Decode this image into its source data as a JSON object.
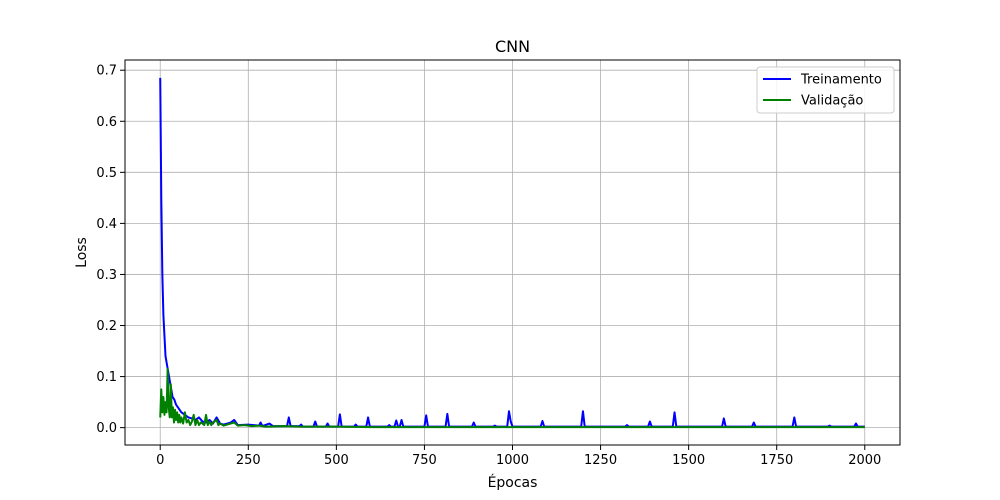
{
  "chart_data": {
    "type": "line",
    "title": "CNN",
    "xlabel": "Épocas",
    "ylabel": "Loss",
    "xlim": [
      -100,
      2100
    ],
    "ylim": [
      -0.034,
      0.72
    ],
    "x_ticks": [
      0,
      250,
      500,
      750,
      1000,
      1250,
      1500,
      1750,
      2000
    ],
    "y_ticks": [
      0.0,
      0.1,
      0.2,
      0.3,
      0.4,
      0.5,
      0.6,
      0.7
    ],
    "grid": true,
    "legend_position": "top-right",
    "series": [
      {
        "name": "Treinamento",
        "color": "#0000ff",
        "points": [
          [
            0,
            0.685
          ],
          [
            3,
            0.45
          ],
          [
            6,
            0.3
          ],
          [
            9,
            0.22
          ],
          [
            12,
            0.18
          ],
          [
            15,
            0.14
          ],
          [
            20,
            0.12
          ],
          [
            25,
            0.1
          ],
          [
            30,
            0.08
          ],
          [
            35,
            0.06
          ],
          [
            40,
            0.055
          ],
          [
            45,
            0.045
          ],
          [
            50,
            0.04
          ],
          [
            55,
            0.035
          ],
          [
            60,
            0.03
          ],
          [
            70,
            0.025
          ],
          [
            80,
            0.02
          ],
          [
            90,
            0.018
          ],
          [
            100,
            0.015
          ],
          [
            110,
            0.02
          ],
          [
            120,
            0.012
          ],
          [
            130,
            0.01
          ],
          [
            140,
            0.015
          ],
          [
            150,
            0.008
          ],
          [
            160,
            0.02
          ],
          [
            170,
            0.008
          ],
          [
            180,
            0.006
          ],
          [
            200,
            0.01
          ],
          [
            210,
            0.015
          ],
          [
            220,
            0.005
          ],
          [
            250,
            0.006
          ],
          [
            280,
            0.004
          ],
          [
            285,
            0.01
          ],
          [
            290,
            0.003
          ],
          [
            310,
            0.008
          ],
          [
            320,
            0.003
          ],
          [
            360,
            0.003
          ],
          [
            365,
            0.02
          ],
          [
            370,
            0.003
          ],
          [
            395,
            0.003
          ],
          [
            400,
            0.006
          ],
          [
            405,
            0.002
          ],
          [
            435,
            0.002
          ],
          [
            440,
            0.012
          ],
          [
            445,
            0.002
          ],
          [
            470,
            0.002
          ],
          [
            475,
            0.008
          ],
          [
            480,
            0.002
          ],
          [
            505,
            0.002
          ],
          [
            510,
            0.026
          ],
          [
            515,
            0.002
          ],
          [
            550,
            0.002
          ],
          [
            555,
            0.006
          ],
          [
            560,
            0.002
          ],
          [
            585,
            0.002
          ],
          [
            590,
            0.02
          ],
          [
            595,
            0.002
          ],
          [
            645,
            0.002
          ],
          [
            650,
            0.005
          ],
          [
            655,
            0.002
          ],
          [
            665,
            0.002
          ],
          [
            670,
            0.014
          ],
          [
            675,
            0.002
          ],
          [
            680,
            0.002
          ],
          [
            685,
            0.015
          ],
          [
            690,
            0.002
          ],
          [
            750,
            0.002
          ],
          [
            755,
            0.024
          ],
          [
            760,
            0.002
          ],
          [
            810,
            0.002
          ],
          [
            815,
            0.027
          ],
          [
            820,
            0.002
          ],
          [
            885,
            0.002
          ],
          [
            890,
            0.01
          ],
          [
            895,
            0.002
          ],
          [
            945,
            0.002
          ],
          [
            950,
            0.004
          ],
          [
            955,
            0.002
          ],
          [
            985,
            0.002
          ],
          [
            990,
            0.032
          ],
          [
            995,
            0.012
          ],
          [
            1000,
            0.002
          ],
          [
            1080,
            0.002
          ],
          [
            1085,
            0.013
          ],
          [
            1090,
            0.002
          ],
          [
            1195,
            0.002
          ],
          [
            1200,
            0.032
          ],
          [
            1205,
            0.002
          ],
          [
            1320,
            0.002
          ],
          [
            1325,
            0.005
          ],
          [
            1330,
            0.002
          ],
          [
            1385,
            0.002
          ],
          [
            1390,
            0.012
          ],
          [
            1395,
            0.002
          ],
          [
            1455,
            0.002
          ],
          [
            1460,
            0.03
          ],
          [
            1465,
            0.002
          ],
          [
            1595,
            0.002
          ],
          [
            1600,
            0.018
          ],
          [
            1605,
            0.002
          ],
          [
            1680,
            0.002
          ],
          [
            1685,
            0.01
          ],
          [
            1690,
            0.002
          ],
          [
            1795,
            0.002
          ],
          [
            1800,
            0.02
          ],
          [
            1805,
            0.002
          ],
          [
            1895,
            0.002
          ],
          [
            1900,
            0.004
          ],
          [
            1905,
            0.002
          ],
          [
            1970,
            0.002
          ],
          [
            1975,
            0.008
          ],
          [
            1980,
            0.002
          ],
          [
            2000,
            0.002
          ]
        ]
      },
      {
        "name": "Validação",
        "color": "#008000",
        "points": [
          [
            0,
            0.02
          ],
          [
            3,
            0.075
          ],
          [
            6,
            0.03
          ],
          [
            9,
            0.06
          ],
          [
            12,
            0.025
          ],
          [
            15,
            0.05
          ],
          [
            18,
            0.03
          ],
          [
            21,
            0.115
          ],
          [
            24,
            0.04
          ],
          [
            27,
            0.02
          ],
          [
            30,
            0.085
          ],
          [
            33,
            0.02
          ],
          [
            36,
            0.04
          ],
          [
            39,
            0.01
          ],
          [
            42,
            0.035
          ],
          [
            45,
            0.015
          ],
          [
            48,
            0.03
          ],
          [
            51,
            0.01
          ],
          [
            54,
            0.025
          ],
          [
            57,
            0.01
          ],
          [
            60,
            0.02
          ],
          [
            65,
            0.008
          ],
          [
            70,
            0.03
          ],
          [
            75,
            0.01
          ],
          [
            80,
            0.015
          ],
          [
            85,
            0.005
          ],
          [
            90,
            0.012
          ],
          [
            95,
            0.025
          ],
          [
            100,
            0.005
          ],
          [
            105,
            0.015
          ],
          [
            110,
            0.005
          ],
          [
            115,
            0.01
          ],
          [
            120,
            0.008
          ],
          [
            125,
            0.005
          ],
          [
            130,
            0.025
          ],
          [
            135,
            0.005
          ],
          [
            140,
            0.012
          ],
          [
            145,
            0.005
          ],
          [
            150,
            0.01
          ],
          [
            160,
            0.015
          ],
          [
            165,
            0.005
          ],
          [
            170,
            0.008
          ],
          [
            180,
            0.004
          ],
          [
            190,
            0.006
          ],
          [
            200,
            0.008
          ],
          [
            210,
            0.01
          ],
          [
            220,
            0.004
          ],
          [
            240,
            0.005
          ],
          [
            260,
            0.003
          ],
          [
            280,
            0.004
          ],
          [
            300,
            0.002
          ],
          [
            350,
            0.003
          ],
          [
            400,
            0.002
          ],
          [
            500,
            0.002
          ],
          [
            600,
            0.001
          ],
          [
            800,
            0.001
          ],
          [
            1000,
            0.001
          ],
          [
            1500,
            0.001
          ],
          [
            2000,
            0.001
          ]
        ]
      }
    ]
  }
}
